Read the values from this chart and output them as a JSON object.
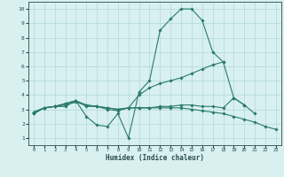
{
  "xlabel": "Humidex (Indice chaleur)",
  "x_values": [
    0,
    1,
    2,
    3,
    4,
    5,
    6,
    7,
    8,
    9,
    10,
    11,
    12,
    13,
    14,
    15,
    16,
    17,
    18,
    19,
    20,
    21,
    22,
    23
  ],
  "line1": [
    2.7,
    3.1,
    3.2,
    3.2,
    3.6,
    2.5,
    1.9,
    1.8,
    2.7,
    1.0,
    4.2,
    5.0,
    8.5,
    9.3,
    10.0,
    10.0,
    9.2,
    7.0,
    6.3,
    3.8,
    3.3,
    2.7,
    null,
    null
  ],
  "line2": [
    2.7,
    3.1,
    3.2,
    3.3,
    3.5,
    3.3,
    3.2,
    3.0,
    2.9,
    3.1,
    4.0,
    4.5,
    4.8,
    5.0,
    5.2,
    5.5,
    5.8,
    6.1,
    6.3,
    null,
    null,
    null,
    null,
    null
  ],
  "line3": [
    2.8,
    3.1,
    3.2,
    3.4,
    3.6,
    3.2,
    3.2,
    3.1,
    3.0,
    3.1,
    3.1,
    3.1,
    3.1,
    3.1,
    3.1,
    3.0,
    2.9,
    2.8,
    2.7,
    2.5,
    2.3,
    2.1,
    1.8,
    1.6
  ],
  "line4": [
    2.8,
    3.1,
    3.2,
    3.4,
    3.6,
    3.3,
    3.2,
    3.1,
    3.0,
    3.1,
    3.1,
    3.1,
    3.2,
    3.2,
    3.3,
    3.3,
    3.2,
    3.2,
    3.1,
    3.8,
    3.3,
    null,
    null,
    null
  ],
  "line_color": "#2a7a6a",
  "bg_color": "#d8f0f0",
  "grid_color": "#b0d8d8",
  "ylim": [
    0.5,
    10.5
  ],
  "xlim": [
    -0.5,
    23.5
  ],
  "yticks": [
    1,
    2,
    3,
    4,
    5,
    6,
    7,
    8,
    9,
    10
  ],
  "xticks": [
    0,
    1,
    2,
    3,
    4,
    5,
    6,
    7,
    8,
    9,
    10,
    11,
    12,
    13,
    14,
    15,
    16,
    17,
    18,
    19,
    20,
    21,
    22,
    23
  ]
}
